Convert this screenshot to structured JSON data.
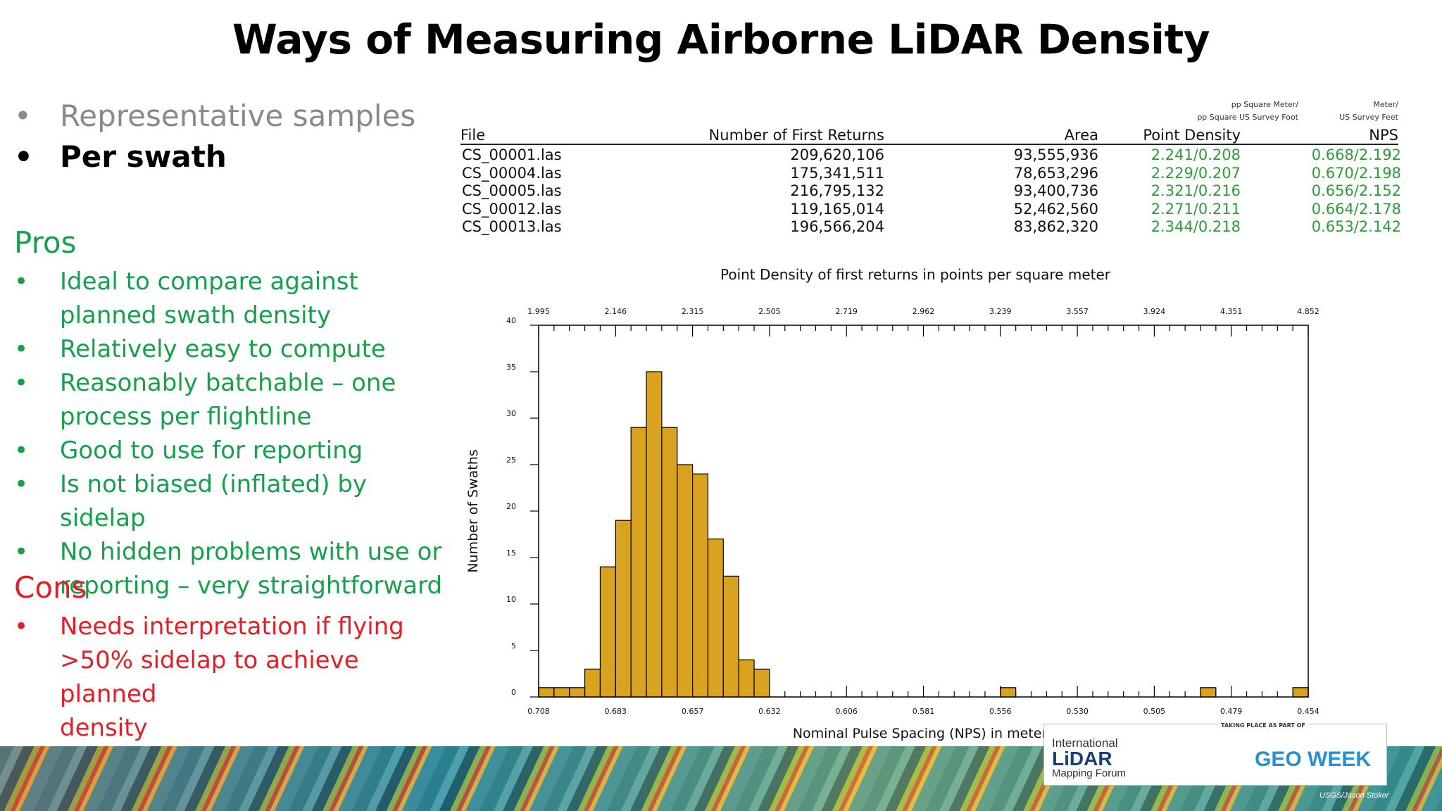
{
  "title": "Ways of Measuring Airborne LiDAR Density",
  "bullets": {
    "dot": "•",
    "representative": "Representative samples",
    "per_swath": "Per swath"
  },
  "pros": {
    "heading": "Pros",
    "items": [
      [
        "Ideal to compare against",
        "planned swath density"
      ],
      [
        "Relatively easy to compute"
      ],
      [
        "Reasonably batchable – one",
        "process per flightline"
      ],
      [
        "Good to use for reporting"
      ],
      [
        "Is not biased (inflated) by sidelap"
      ],
      [
        "No hidden problems with use or",
        "reporting – very straightforward"
      ]
    ],
    "color": "#17a04b"
  },
  "cons": {
    "heading": "Cons",
    "items": [
      [
        "Needs interpretation if flying",
        ">50% sidelap to achieve planned",
        "density"
      ]
    ],
    "color": "#e41e26"
  },
  "table": {
    "units": {
      "point_density": [
        "pp Square Meter/",
        "pp Square US Survey Foot"
      ],
      "nps": [
        "Meter/",
        "US Survey Feet"
      ]
    },
    "headers": [
      "File",
      "Number of First Returns",
      "Area",
      "Point Density",
      "NPS"
    ],
    "rows": [
      [
        "CS_00001.las",
        "209,620,106",
        "93,555,936",
        "2.241/0.208",
        "0.668/2.192"
      ],
      [
        "CS_00004.las",
        "175,341,511",
        "78,653,296",
        "2.229/0.207",
        "0.670/2.198"
      ],
      [
        "CS_00005.las",
        "216,795,132",
        "93,400,736",
        "2.321/0.216",
        "0.656/2.152"
      ],
      [
        "CS_00012.las",
        "119,165,014",
        "52,462,560",
        "2.271/0.211",
        "0.664/2.178"
      ],
      [
        "CS_00013.las",
        "196,566,204",
        "83,862,320",
        "2.344/0.218",
        "0.653/2.142"
      ]
    ]
  },
  "chart_data": {
    "type": "bar",
    "title": "Point Density of first returns in points per square meter",
    "xlabel": "Nominal Pulse Spacing (NPS) in meters",
    "ylabel": "Number of Swaths",
    "ylim": [
      0,
      40
    ],
    "yticks": [
      0,
      5,
      10,
      15,
      20,
      25,
      30,
      35,
      40
    ],
    "bottom_tick_labels": [
      "0.708",
      "0.683",
      "0.657",
      "0.632",
      "0.606",
      "0.581",
      "0.556",
      "0.530",
      "0.505",
      "0.479",
      "0.454"
    ],
    "top_tick_labels": [
      "1.995",
      "2.146",
      "2.315",
      "2.505",
      "2.719",
      "2.962",
      "3.239",
      "3.557",
      "3.924",
      "4.351",
      "4.852"
    ],
    "bin_count": 50,
    "values": [
      1,
      1,
      1,
      3,
      14,
      19,
      29,
      35,
      29,
      25,
      24,
      17,
      13,
      4,
      3,
      0,
      0,
      0,
      0,
      0,
      0,
      0,
      0,
      0,
      0,
      0,
      0,
      0,
      0,
      0,
      1,
      0,
      0,
      0,
      0,
      0,
      0,
      0,
      0,
      0,
      0,
      0,
      0,
      1,
      0,
      0,
      0,
      0,
      0,
      1
    ],
    "bar_color": "#d9a21f",
    "grid": false
  },
  "footer": {
    "taking_place": "TAKING PLACE AS PART OF",
    "ilmf_line1": "International",
    "ilmf_line2": "LiDAR",
    "ilmf_line3": "Mapping Forum",
    "geo_week": "GEO WEEK",
    "credit": "USGS/Jason Stoker"
  }
}
